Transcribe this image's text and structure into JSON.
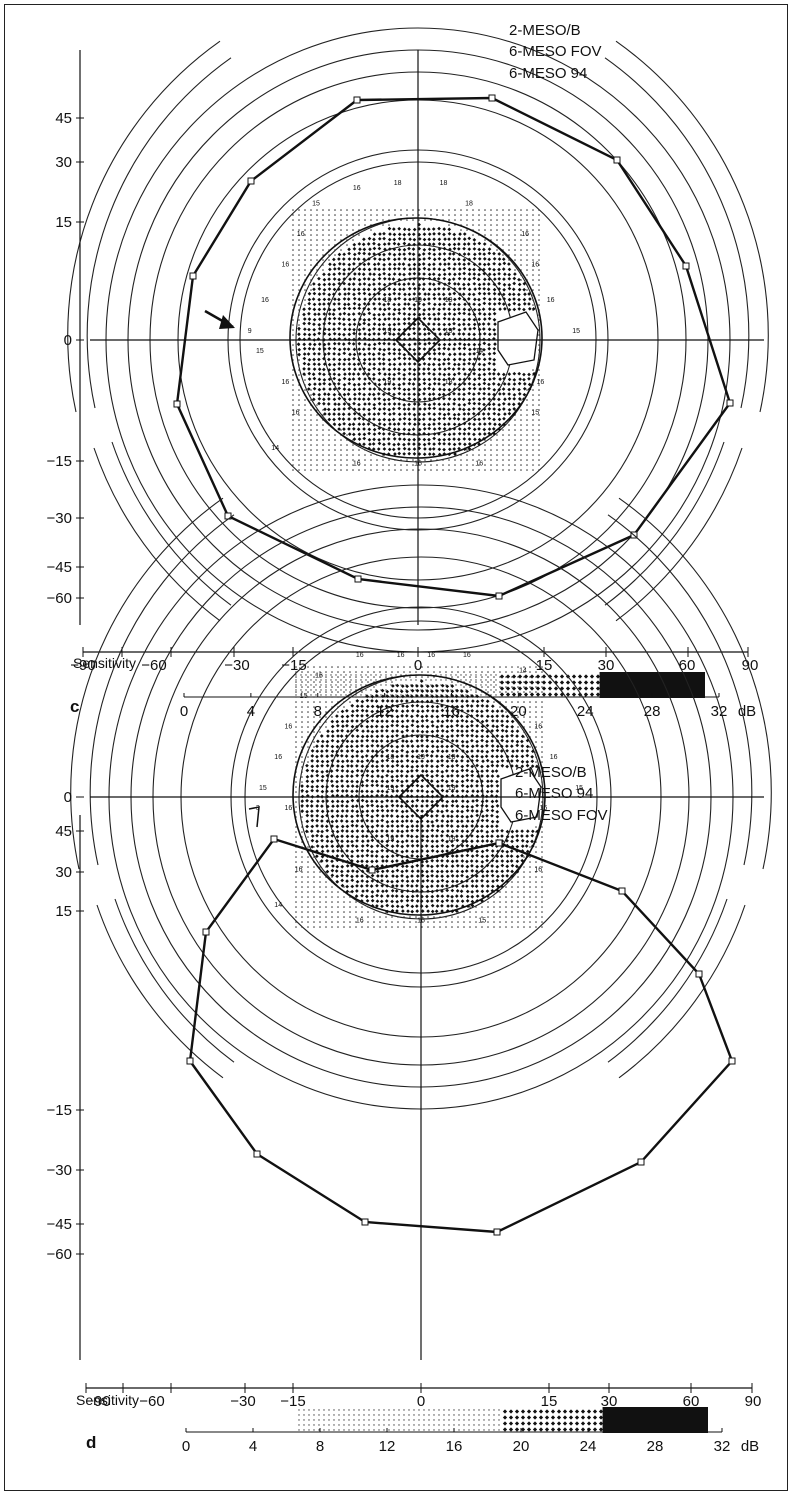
{
  "colors": {
    "ink": "#111111",
    "background": "#ffffff"
  },
  "chart_data": [
    {
      "type": "scatter",
      "panel_label": "c",
      "legend": [
        "2-MESO/B",
        "6-MESO FOV",
        "6-MESO 94"
      ],
      "y_ticks": [
        "45",
        "30",
        "15",
        "0",
        "−15",
        "−30",
        "−45",
        "−60"
      ],
      "x_ticks": [
        "−90",
        "−60",
        "−30",
        "−15",
        "0",
        "15",
        "30",
        "60",
        "90"
      ],
      "sensitivity_label": "Sensitivity",
      "db_ticks": [
        "0",
        "4",
        "8",
        "12",
        "16",
        "20",
        "24",
        "28",
        "32"
      ],
      "db_unit": "dB",
      "grid": "polar isopters with crosshair axes",
      "point_values": [
        {
          "x": -4,
          "y": 31,
          "v": "18"
        },
        {
          "x": 5,
          "y": 31,
          "v": "18"
        },
        {
          "x": -12,
          "y": 30,
          "v": "16"
        },
        {
          "x": -20,
          "y": 27,
          "v": "15"
        },
        {
          "x": 10,
          "y": 27,
          "v": "18"
        },
        {
          "x": -23,
          "y": 21,
          "v": "16"
        },
        {
          "x": 21,
          "y": 21,
          "v": "16"
        },
        {
          "x": -26,
          "y": 15,
          "v": "16"
        },
        {
          "x": 23,
          "y": 15,
          "v": "16"
        },
        {
          "x": -30,
          "y": 8,
          "v": "16"
        },
        {
          "x": 26,
          "y": 8,
          "v": "16"
        },
        {
          "x": -33,
          "y": 2,
          "v": "9"
        },
        {
          "x": 31,
          "y": 2,
          "v": "15"
        },
        {
          "x": -31,
          "y": -2,
          "v": "15"
        },
        {
          "x": -26,
          "y": -8,
          "v": "16"
        },
        {
          "x": 24,
          "y": -8,
          "v": "16"
        },
        {
          "x": -24,
          "y": -14,
          "v": "16"
        },
        {
          "x": 23,
          "y": -14,
          "v": "15"
        },
        {
          "x": -28,
          "y": -21,
          "v": "14"
        },
        {
          "x": -12,
          "y": -24,
          "v": "16"
        },
        {
          "x": 0,
          "y": -24,
          "v": "16"
        },
        {
          "x": 12,
          "y": -24,
          "v": "16"
        },
        {
          "x": -6,
          "y": 8,
          "v": "18"
        },
        {
          "x": 0,
          "y": 8,
          "v": "19"
        },
        {
          "x": 6,
          "y": 8,
          "v": "19"
        },
        {
          "x": -6,
          "y": 2,
          "v": "19"
        },
        {
          "x": 6,
          "y": 2,
          "v": "19"
        },
        {
          "x": 12,
          "y": -2,
          "v": "14"
        },
        {
          "x": -6,
          "y": -8,
          "v": "19"
        },
        {
          "x": 6,
          "y": -8,
          "v": "18"
        }
      ]
    },
    {
      "type": "scatter",
      "panel_label": "d",
      "legend": [
        "2-MESO/B",
        "6-MESO 94",
        "6-MESO FOV"
      ],
      "y_ticks": [
        "45",
        "30",
        "15",
        "0",
        "−15",
        "−30",
        "−45",
        "−60"
      ],
      "x_ticks": [
        "−90",
        "−60",
        "−30",
        "−15",
        "0",
        "15",
        "30",
        "60",
        "90"
      ],
      "sensitivity_label": "Sensitivity",
      "db_ticks": [
        "0",
        "4",
        "8",
        "12",
        "16",
        "20",
        "24",
        "28",
        "32"
      ],
      "db_unit": "dB",
      "grid": "polar isopters with crosshair axes",
      "point_values": [
        {
          "x": -12,
          "y": 28,
          "v": "16"
        },
        {
          "x": -4,
          "y": 28,
          "v": "16"
        },
        {
          "x": 2,
          "y": 28,
          "v": "16"
        },
        {
          "x": 9,
          "y": 28,
          "v": "16"
        },
        {
          "x": -20,
          "y": 24,
          "v": "16"
        },
        {
          "x": 20,
          "y": 25,
          "v": "14"
        },
        {
          "x": -23,
          "y": 20,
          "v": "15"
        },
        {
          "x": -26,
          "y": 14,
          "v": "16"
        },
        {
          "x": 23,
          "y": 14,
          "v": "16"
        },
        {
          "x": -28,
          "y": 8,
          "v": "16"
        },
        {
          "x": 26,
          "y": 8,
          "v": "16"
        },
        {
          "x": -31,
          "y": 2,
          "v": "15"
        },
        {
          "x": 31,
          "y": 2,
          "v": "15"
        },
        {
          "x": -26,
          "y": -2,
          "v": "16"
        },
        {
          "x": 24,
          "y": -2,
          "v": "16"
        },
        {
          "x": -24,
          "y": -14,
          "v": "16"
        },
        {
          "x": 23,
          "y": -14,
          "v": "16"
        },
        {
          "x": -28,
          "y": -21,
          "v": "14"
        },
        {
          "x": -12,
          "y": -24,
          "v": "16"
        },
        {
          "x": 0,
          "y": -24,
          "v": "16"
        },
        {
          "x": 12,
          "y": -24,
          "v": "15"
        },
        {
          "x": -32,
          "y": -2,
          "v": "3"
        },
        {
          "x": -6,
          "y": 8,
          "v": "18"
        },
        {
          "x": 0,
          "y": 8,
          "v": "19"
        },
        {
          "x": 6,
          "y": 8,
          "v": "19"
        },
        {
          "x": -6,
          "y": 2,
          "v": "19"
        },
        {
          "x": 6,
          "y": 2,
          "v": "19"
        },
        {
          "x": -6,
          "y": -8,
          "v": "19"
        },
        {
          "x": 6,
          "y": -8,
          "v": "18"
        }
      ]
    }
  ]
}
